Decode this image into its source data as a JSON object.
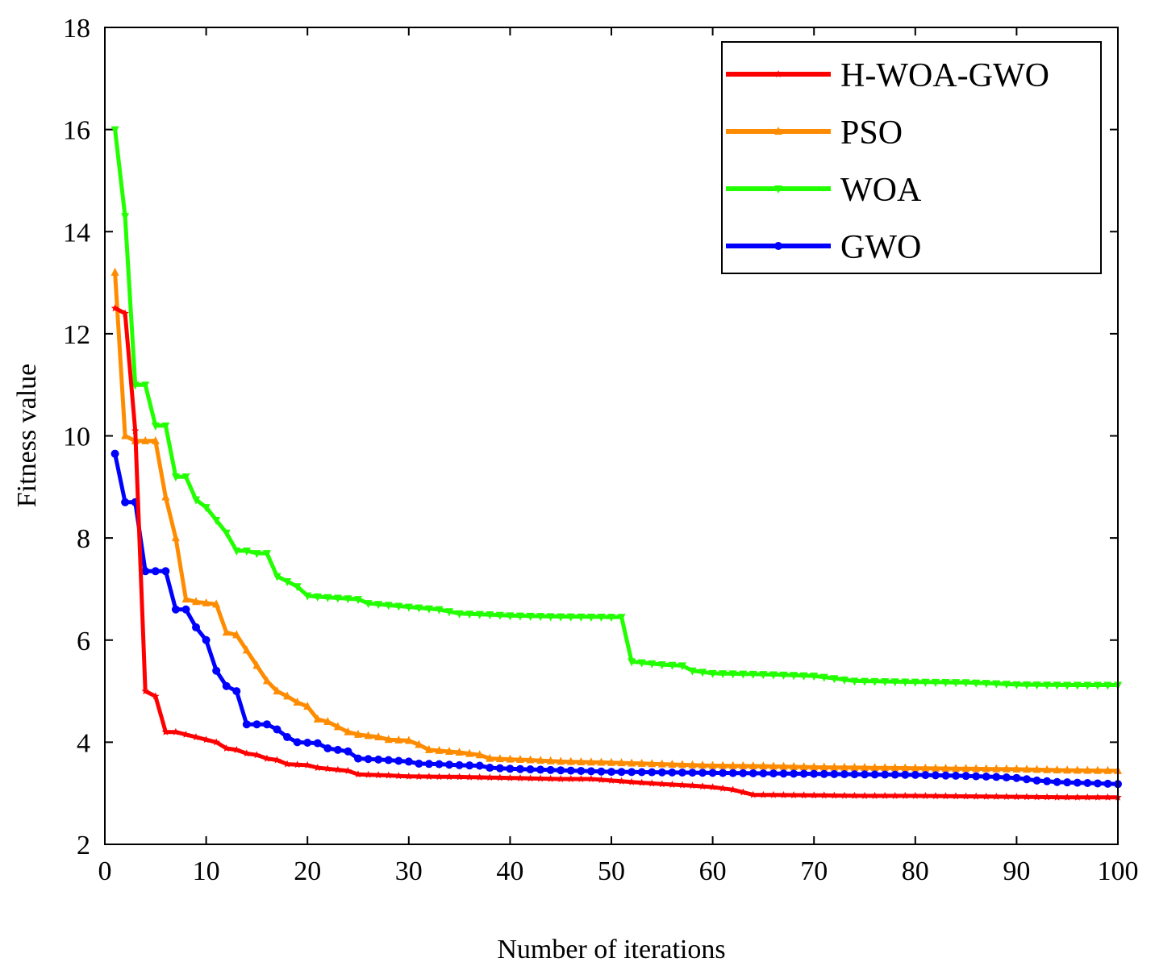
{
  "chart_data": {
    "type": "line",
    "title": "",
    "xlabel": "Number of iterations",
    "ylabel": "Fitness value",
    "xlim": [
      0,
      100
    ],
    "ylim": [
      2,
      18
    ],
    "xticks": [
      0,
      10,
      20,
      30,
      40,
      50,
      60,
      70,
      80,
      90,
      100
    ],
    "yticks": [
      2,
      4,
      6,
      8,
      10,
      12,
      14,
      16,
      18
    ],
    "grid": false,
    "legend_position": "top-right",
    "series": [
      {
        "name": "H-WOA-GWO",
        "color": "#ff0000",
        "marker": "star",
        "points": [
          [
            1,
            12.5
          ],
          [
            2,
            12.4
          ],
          [
            3,
            10.1
          ],
          [
            4,
            5.0
          ],
          [
            5,
            4.9
          ],
          [
            6,
            4.2
          ],
          [
            7,
            4.2
          ],
          [
            8,
            4.15
          ],
          [
            10,
            4.05
          ],
          [
            11,
            4.0
          ],
          [
            12,
            3.88
          ],
          [
            13,
            3.85
          ],
          [
            14,
            3.78
          ],
          [
            15,
            3.75
          ],
          [
            16,
            3.68
          ],
          [
            17,
            3.65
          ],
          [
            18,
            3.57
          ],
          [
            20,
            3.55
          ],
          [
            21,
            3.5
          ],
          [
            23,
            3.46
          ],
          [
            24,
            3.44
          ],
          [
            25,
            3.37
          ],
          [
            28,
            3.35
          ],
          [
            30,
            3.33
          ],
          [
            35,
            3.32
          ],
          [
            40,
            3.3
          ],
          [
            45,
            3.28
          ],
          [
            48,
            3.28
          ],
          [
            50,
            3.25
          ],
          [
            52,
            3.22
          ],
          [
            55,
            3.18
          ],
          [
            58,
            3.15
          ],
          [
            60,
            3.12
          ],
          [
            62,
            3.07
          ],
          [
            63,
            3.02
          ],
          [
            64,
            2.97
          ],
          [
            70,
            2.96
          ],
          [
            75,
            2.95
          ],
          [
            80,
            2.95
          ],
          [
            85,
            2.94
          ],
          [
            90,
            2.93
          ],
          [
            95,
            2.92
          ],
          [
            100,
            2.92
          ]
        ]
      },
      {
        "name": "PSO",
        "color": "#ff8c00",
        "marker": "triangle-up",
        "points": [
          [
            1,
            13.2
          ],
          [
            2,
            10.0
          ],
          [
            3,
            9.9
          ],
          [
            5,
            9.9
          ],
          [
            6,
            8.8
          ],
          [
            7,
            8.0
          ],
          [
            8,
            6.8
          ],
          [
            9,
            6.75
          ],
          [
            11,
            6.7
          ],
          [
            12,
            6.15
          ],
          [
            13,
            6.1
          ],
          [
            14,
            5.8
          ],
          [
            15,
            5.5
          ],
          [
            16,
            5.2
          ],
          [
            17,
            5.0
          ],
          [
            18,
            4.9
          ],
          [
            19,
            4.78
          ],
          [
            20,
            4.7
          ],
          [
            21,
            4.45
          ],
          [
            22,
            4.4
          ],
          [
            23,
            4.3
          ],
          [
            24,
            4.2
          ],
          [
            25,
            4.15
          ],
          [
            27,
            4.1
          ],
          [
            28,
            4.05
          ],
          [
            30,
            4.03
          ],
          [
            31,
            3.95
          ],
          [
            32,
            3.85
          ],
          [
            35,
            3.8
          ],
          [
            37,
            3.75
          ],
          [
            38,
            3.68
          ],
          [
            42,
            3.65
          ],
          [
            45,
            3.62
          ],
          [
            50,
            3.6
          ],
          [
            55,
            3.57
          ],
          [
            60,
            3.54
          ],
          [
            65,
            3.53
          ],
          [
            70,
            3.51
          ],
          [
            75,
            3.5
          ],
          [
            80,
            3.49
          ],
          [
            85,
            3.48
          ],
          [
            90,
            3.47
          ],
          [
            95,
            3.45
          ],
          [
            100,
            3.44
          ]
        ]
      },
      {
        "name": "WOA",
        "color": "#22ff00",
        "marker": "triangle-down",
        "points": [
          [
            1,
            16.0
          ],
          [
            2,
            14.3
          ],
          [
            3,
            11.0
          ],
          [
            4,
            11.0
          ],
          [
            5,
            10.2
          ],
          [
            6,
            10.2
          ],
          [
            7,
            9.2
          ],
          [
            8,
            9.2
          ],
          [
            9,
            8.75
          ],
          [
            10,
            8.6
          ],
          [
            11,
            8.35
          ],
          [
            12,
            8.1
          ],
          [
            13,
            7.75
          ],
          [
            14,
            7.75
          ],
          [
            15,
            7.7
          ],
          [
            16,
            7.7
          ],
          [
            17,
            7.25
          ],
          [
            18,
            7.15
          ],
          [
            19,
            7.05
          ],
          [
            20,
            6.87
          ],
          [
            21,
            6.85
          ],
          [
            25,
            6.8
          ],
          [
            26,
            6.72
          ],
          [
            30,
            6.65
          ],
          [
            33,
            6.6
          ],
          [
            35,
            6.52
          ],
          [
            38,
            6.5
          ],
          [
            40,
            6.48
          ],
          [
            45,
            6.46
          ],
          [
            51,
            6.45
          ],
          [
            52,
            5.58
          ],
          [
            55,
            5.52
          ],
          [
            57,
            5.5
          ],
          [
            58,
            5.4
          ],
          [
            60,
            5.35
          ],
          [
            65,
            5.33
          ],
          [
            70,
            5.3
          ],
          [
            72,
            5.25
          ],
          [
            74,
            5.2
          ],
          [
            77,
            5.19
          ],
          [
            80,
            5.18
          ],
          [
            85,
            5.17
          ],
          [
            88,
            5.15
          ],
          [
            90,
            5.13
          ],
          [
            95,
            5.12
          ],
          [
            100,
            5.12
          ]
        ]
      },
      {
        "name": "GWO",
        "color": "#0000ff",
        "marker": "circle",
        "points": [
          [
            1,
            9.65
          ],
          [
            2,
            8.7
          ],
          [
            3,
            8.7
          ],
          [
            4,
            7.35
          ],
          [
            5,
            7.35
          ],
          [
            6,
            7.35
          ],
          [
            7,
            6.6
          ],
          [
            8,
            6.6
          ],
          [
            9,
            6.25
          ],
          [
            10,
            6.0
          ],
          [
            11,
            5.4
          ],
          [
            12,
            5.1
          ],
          [
            13,
            5.0
          ],
          [
            14,
            4.35
          ],
          [
            16,
            4.35
          ],
          [
            17,
            4.25
          ],
          [
            18,
            4.1
          ],
          [
            19,
            4.0
          ],
          [
            21,
            3.98
          ],
          [
            22,
            3.88
          ],
          [
            23,
            3.85
          ],
          [
            24,
            3.82
          ],
          [
            25,
            3.68
          ],
          [
            28,
            3.65
          ],
          [
            30,
            3.62
          ],
          [
            31,
            3.58
          ],
          [
            33,
            3.57
          ],
          [
            35,
            3.55
          ],
          [
            37,
            3.54
          ],
          [
            38,
            3.5
          ],
          [
            40,
            3.48
          ],
          [
            45,
            3.45
          ],
          [
            50,
            3.42
          ],
          [
            55,
            3.41
          ],
          [
            60,
            3.4
          ],
          [
            65,
            3.39
          ],
          [
            70,
            3.38
          ],
          [
            75,
            3.37
          ],
          [
            80,
            3.36
          ],
          [
            85,
            3.34
          ],
          [
            88,
            3.32
          ],
          [
            90,
            3.3
          ],
          [
            92,
            3.25
          ],
          [
            94,
            3.22
          ],
          [
            97,
            3.2
          ],
          [
            100,
            3.18
          ]
        ]
      }
    ]
  }
}
